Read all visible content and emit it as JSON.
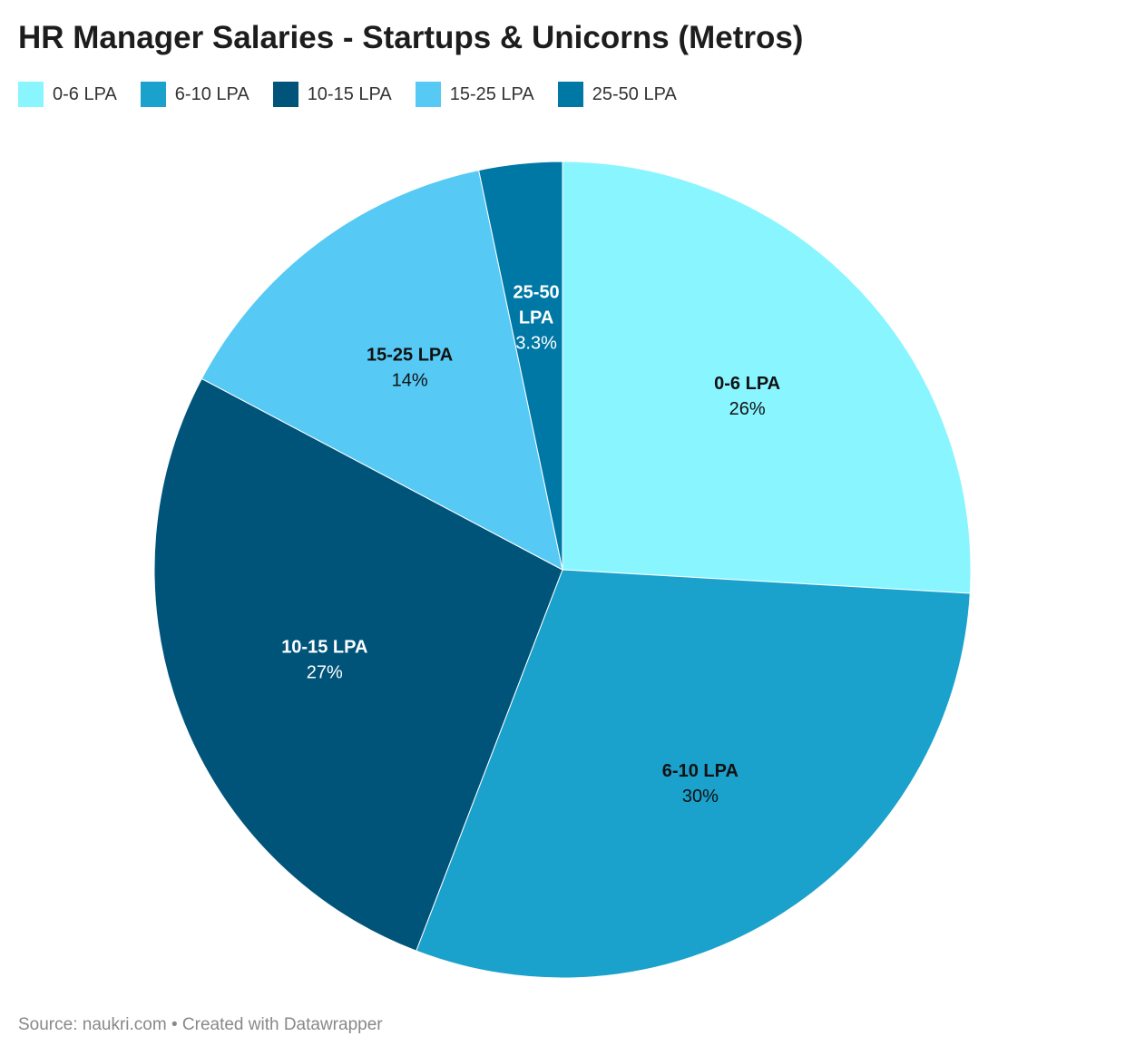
{
  "chart_data": {
    "type": "pie",
    "title": "HR Manager Salaries - Startups & Unicorns (Metros)",
    "categories": [
      "0-6 LPA",
      "6-10 LPA",
      "10-15 LPA",
      "15-25 LPA",
      "25-50 LPA"
    ],
    "values": [
      26,
      30,
      27,
      14,
      3.3
    ],
    "value_labels": [
      "26%",
      "30%",
      "27%",
      "14%",
      "3.3%"
    ],
    "colors": [
      "#88f5ff",
      "#1aa1cc",
      "#00547a",
      "#56c9f5",
      "#0078a6"
    ],
    "label_colors": [
      "#111111",
      "#111111",
      "#ffffff",
      "#111111",
      "#ffffff"
    ],
    "legend_position": "top-left",
    "start": "top, clockwise"
  },
  "footer": {
    "source": "Source: naukri.com • Created with Datawrapper"
  }
}
